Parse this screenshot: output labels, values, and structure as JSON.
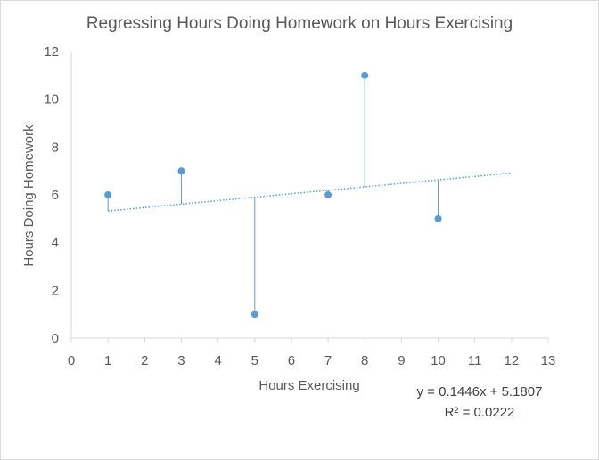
{
  "chart_data": {
    "type": "scatter",
    "title": "Regressing Hours Doing Homework on Hours Exercising",
    "xlabel": "Hours Exercising",
    "ylabel": "Hours Doing Homework",
    "xlim": [
      0,
      13
    ],
    "ylim": [
      0,
      12
    ],
    "x_ticks": [
      0,
      1,
      2,
      3,
      4,
      5,
      6,
      7,
      8,
      9,
      10,
      11,
      12,
      13
    ],
    "y_ticks": [
      0,
      2,
      4,
      6,
      8,
      10,
      12
    ],
    "grid": false,
    "legend": "none",
    "points": [
      {
        "x": 1,
        "y": 6
      },
      {
        "x": 3,
        "y": 7
      },
      {
        "x": 5,
        "y": 1
      },
      {
        "x": 7,
        "y": 6
      },
      {
        "x": 8,
        "y": 11
      },
      {
        "x": 10,
        "y": 5
      }
    ],
    "trendline": {
      "slope": 0.1446,
      "intercept": 5.1807,
      "x_range": [
        1,
        12
      ],
      "style": "dotted",
      "equation_label": "y = 0.1446x + 5.1807",
      "r2_label": "R² = 0.0222"
    },
    "residual_lines": true,
    "colors": {
      "points": "#5b9bd5",
      "trendline": "#5b9bd5",
      "residuals": "#5b9bd5",
      "axis": "#d9d9d9",
      "text": "#595959"
    }
  }
}
